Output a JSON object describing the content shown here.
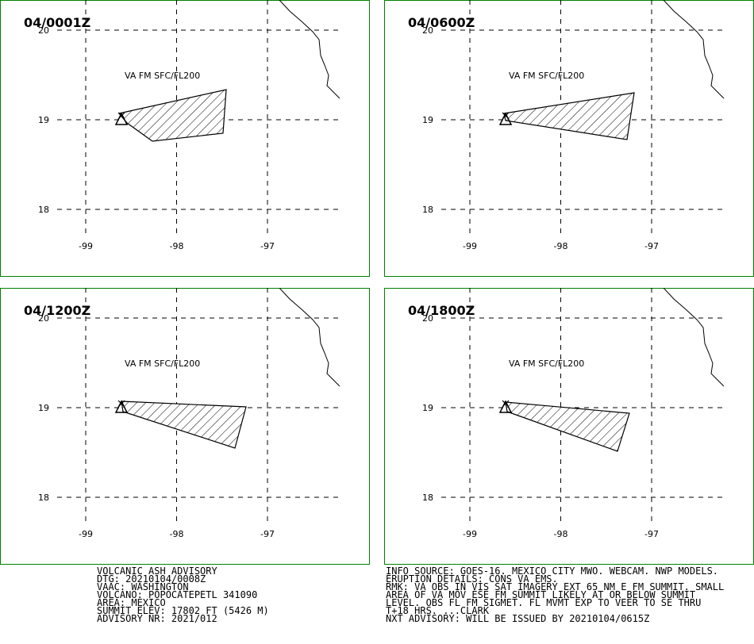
{
  "panels": [
    {
      "time": "04/0001Z",
      "layer": "VA FM SFC/FL200",
      "lat_labels": [
        20,
        19,
        18
      ],
      "lon_labels": [
        -99,
        -98,
        -97
      ]
    },
    {
      "time": "04/0600Z",
      "layer": "VA FM SFC/FL200",
      "lat_labels": [
        20,
        19,
        18
      ],
      "lon_labels": [
        -99,
        -98,
        -97
      ]
    },
    {
      "time": "04/1200Z",
      "layer": "VA FM SFC/FL200",
      "lat_labels": [
        20,
        19,
        18
      ],
      "lon_labels": [
        -99,
        -98,
        -97
      ]
    },
    {
      "time": "04/1800Z",
      "layer": "VA FM SFC/FL200",
      "lat_labels": [
        20,
        19,
        18
      ],
      "lon_labels": [
        -99,
        -98,
        -97
      ]
    }
  ],
  "advisory": {
    "left": [
      "VOLCANIC ASH ADVISORY",
      "DTG: 20210104/0008Z",
      "VAAC: WASHINGTON",
      "VOLCANO: POPOCATEPETL 341090",
      "AREA: MEXICO",
      "SUMMIT ELEV: 17802 FT (5426 M)",
      "ADVISORY NR: 2021/012"
    ],
    "right": [
      "INFO SOURCE: GOES-16. MEXICO CITY MWO. WEBCAM. NWP MODELS.",
      "ERUPTION DETAILS: CONS VA EMS.",
      "RMK: VA OBS IN VIS SAT IMAGERY EXT 65 NM E FM SUMMIT. SMALL",
      "AREA OF VA MOV ESE FM SUMMIT LIKELY AT OR BELOW SUMMIT",
      "LEVEL. OBS FL FM SIGMET. FL MVMT EXP TO VEER TO SE THRU",
      "T+18 HRS. ...CLARK",
      "NXT ADVISORY: WILL BE ISSUED BY 20210104/0615Z"
    ]
  }
}
